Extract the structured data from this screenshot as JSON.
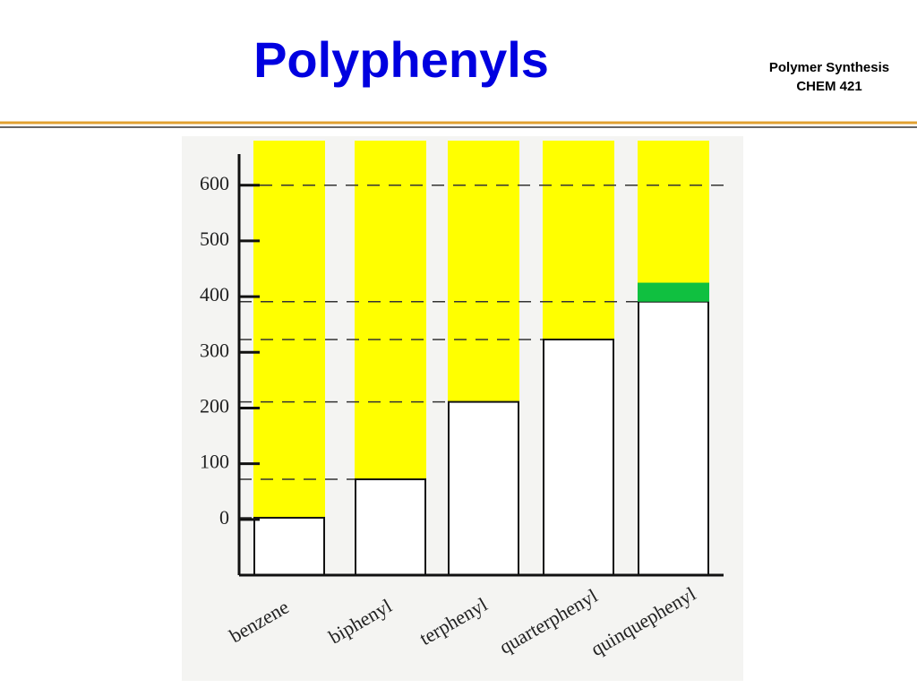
{
  "header": {
    "title": "Polyphenyls",
    "course": "Polymer Synthesis",
    "code": "CHEM 421"
  },
  "chart_data": {
    "type": "bar",
    "categories": [
      "benzene",
      "biphenyl",
      "terphenyl",
      "quarterphenyl",
      "quinquephenyl"
    ],
    "values": [
      3,
      72,
      211,
      323,
      391
    ],
    "green_values": [
      null,
      null,
      null,
      null,
      34
    ],
    "color": "#ffff00",
    "green_color": "#10c040",
    "ylim": [
      -100,
      680
    ],
    "yticks": [
      0,
      100,
      200,
      300,
      400,
      500,
      600
    ]
  }
}
